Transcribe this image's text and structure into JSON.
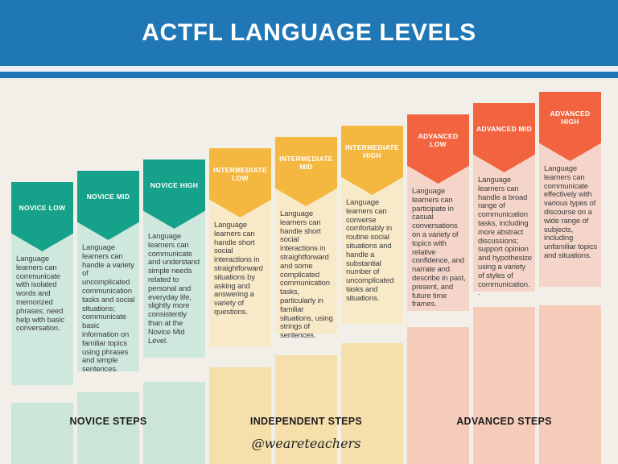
{
  "header": {
    "title": "ACTFL LANGUAGE LEVELS"
  },
  "colors": {
    "banner_blue": "#2077b5",
    "stripe_gap": "#e9eef4",
    "background_cream": "#f2efe9",
    "novice": {
      "badge": "#16a28a",
      "body": "#cfe8dd",
      "step": "#cbe6d8"
    },
    "intermediate": {
      "badge": "#f4b840",
      "body": "#f8e9c9",
      "step": "#f5dfaa"
    },
    "advanced": {
      "badge": "#f2643f",
      "body": "#f5d5c9",
      "step": "#f5cbba"
    }
  },
  "levels": [
    {
      "label": "NOVICE LOW",
      "group": "novice",
      "description": "Language learners can communicate with isolated words and memorized phrases; need help with basic conversation."
    },
    {
      "label": "NOVICE MID",
      "group": "novice",
      "description": "Language learners can handle a variety of uncomplicated communication tasks and social situations; communicate basic information on familiar topics using phrases and simple sentences."
    },
    {
      "label": "NOVICE HIGH",
      "group": "novice",
      "description": "Language learners can communicate and understand simple needs related to personal and everyday life, slightly more consistently than at the Novice Mid Level."
    },
    {
      "label": "INTERMEDIATE LOW",
      "group": "intermediate",
      "description": "Language learners can handle short social interactions in straightforward situations by asking and answering a variety of questions."
    },
    {
      "label": "INTERMEDIATE MID",
      "group": "intermediate",
      "description": "Language learners can handle short social interactions in straightforward and some complicated communication tasks, particularly in familiar situations, using strings of sentences."
    },
    {
      "label": "INTERMEDIATE HIGH",
      "group": "intermediate",
      "description": "Language learners can converse comfortably in routine social situations and handle a substantial number of uncomplicated tasks and situations."
    },
    {
      "label": "ADVANCED LOW",
      "group": "advanced",
      "description": "Language learners can participate in casual conversations on a variety of topics with relative confidence, and narrate and describe in past, present, and future time frames."
    },
    {
      "label": "ADVANCED MID",
      "group": "advanced",
      "description": "Language learners can handle a broad range of communication tasks, including more abstract discussions; support opinion and hypothesize using a variety of styles of communication. ."
    },
    {
      "label": "ADVANCED HIGH",
      "group": "advanced",
      "description": "Language learners can communicate effectively with various types of discourse on a wide range of subjects, including unfamiliar topics and situations."
    }
  ],
  "groups": [
    {
      "name": "NOVICE STEPS"
    },
    {
      "name": "INDEPENDENT STEPS"
    },
    {
      "name": "ADVANCED STEPS"
    }
  ],
  "footer": {
    "handle": "@weareteachers"
  }
}
